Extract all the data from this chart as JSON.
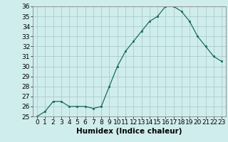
{
  "x": [
    0,
    1,
    2,
    3,
    4,
    5,
    6,
    7,
    8,
    9,
    10,
    11,
    12,
    13,
    14,
    15,
    16,
    17,
    18,
    19,
    20,
    21,
    22,
    23
  ],
  "y": [
    25.0,
    25.5,
    26.5,
    26.5,
    26.0,
    26.0,
    26.0,
    25.8,
    26.0,
    28.0,
    30.0,
    31.5,
    32.5,
    33.5,
    34.5,
    35.0,
    36.0,
    36.0,
    35.5,
    34.5,
    33.0,
    32.0,
    31.0,
    30.5
  ],
  "ylim_min": 25,
  "ylim_max": 36,
  "yticks": [
    25,
    26,
    27,
    28,
    29,
    30,
    31,
    32,
    33,
    34,
    35,
    36
  ],
  "xticks": [
    0,
    1,
    2,
    3,
    4,
    5,
    6,
    7,
    8,
    9,
    10,
    11,
    12,
    13,
    14,
    15,
    16,
    17,
    18,
    19,
    20,
    21,
    22,
    23
  ],
  "xlabel": "Humidex (Indice chaleur)",
  "line_color": "#1a6b5a",
  "marker_color": "#1a6b5a",
  "bg_color": "#d0eded",
  "grid_color": "#b0d0d0",
  "xlabel_fontsize": 7.5,
  "tick_fontsize": 6.5
}
